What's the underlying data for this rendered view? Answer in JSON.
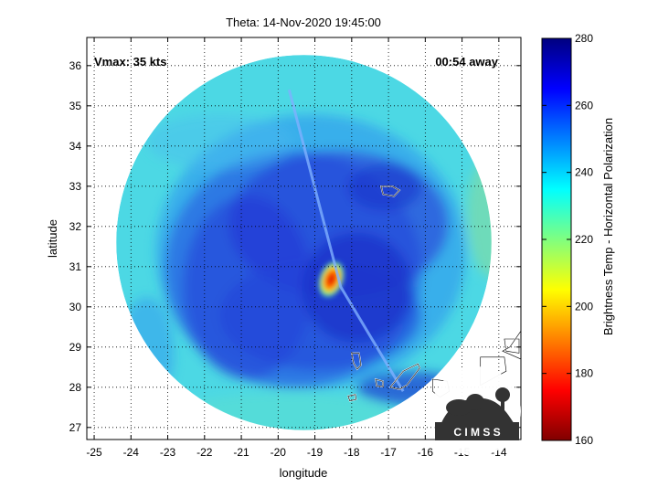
{
  "title": "Theta: 14-Nov-2020 19:45:00",
  "annotations": {
    "vmax": "Vmax: 35 kts",
    "away": "00:54 away"
  },
  "axes": {
    "xlabel": "longitude",
    "ylabel": "latitude",
    "x_range": [
      -25.2,
      -13.4
    ],
    "y_range": [
      26.7,
      36.7
    ],
    "x_ticks": [
      -25,
      -24,
      -23,
      -22,
      -21,
      -20,
      -19,
      -18,
      -17,
      -16,
      -15,
      -14
    ],
    "y_ticks": [
      27,
      28,
      29,
      30,
      31,
      32,
      33,
      34,
      35,
      36
    ],
    "grid": true,
    "grid_style": "dotted"
  },
  "colorbar": {
    "label": "Brightness Temp - Horizontal Polarization",
    "range": [
      160,
      280
    ],
    "ticks": [
      160,
      180,
      200,
      220,
      240,
      260,
      280
    ],
    "colormap": "jet",
    "colormap_reversed": true
  },
  "storm": {
    "name": "Theta",
    "center_lon": -18.6,
    "center_lat": 30.7,
    "swath_center_lon": -19.3,
    "swath_center_lat": 31.6,
    "swath_radius_deg": 5.1
  },
  "logo": {
    "text": "C I M S S"
  },
  "colors": {
    "background_field": "#48d9e6",
    "band": "#2233d6",
    "core": "#ff2a00",
    "coastline": "#ffffff"
  }
}
